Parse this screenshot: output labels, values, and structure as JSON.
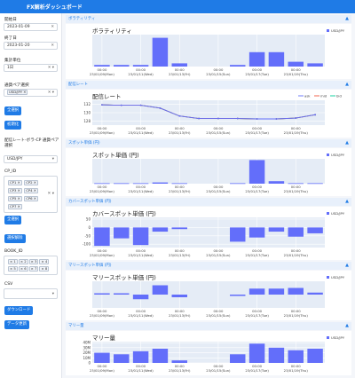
{
  "app": {
    "title": "FX解析ダッシュボード"
  },
  "sidebar": {
    "start_label": "開始日",
    "start_value": "2023-01-09",
    "end_label": "終了日",
    "end_value": "2023-01-20",
    "agg_label": "集計単位",
    "agg_value": "1日",
    "pair_label": "通貨ペア選択",
    "pair_tag": "USD/JPY",
    "select_all": "全選択",
    "reset": "初期化",
    "cp_pair_label": "配信レート-ボラ-CP 通貨ペア選択",
    "cp_pair_value": "USD/JPY",
    "cp_id_label": "CP_ID",
    "cp_tags": [
      "CP1",
      "CP2",
      "CP3",
      "CP4",
      "CP5",
      "CP6",
      "CP7"
    ],
    "select_all2": "全選択",
    "deselect": "選択解除",
    "book_label": "BOOK_ID",
    "book_tags": [
      "1",
      "2",
      "3",
      "4",
      "5",
      "6",
      "7",
      "8"
    ],
    "csv_label": "CSV",
    "download": "ダウンロード",
    "update": "データ更新"
  },
  "x_ticks": [
    [
      "00:00",
      "23/01/09(Mon)"
    ],
    [
      "00:00",
      "23/01/11(Wed)"
    ],
    [
      "00:00",
      "23/01/13(Fri)"
    ],
    [
      "00:00",
      "23/01/15(Sun)"
    ],
    [
      "00:00",
      "23/01/17(Tue)"
    ],
    [
      "00:00",
      "23/01/19(Thu)"
    ]
  ],
  "panels": [
    {
      "head": "ボラティリティ",
      "title": "ボラティリティ",
      "legend": [
        "USD/JPY"
      ]
    },
    {
      "head": "配信レート",
      "title": "配信レート",
      "legend": [
        "ask",
        "mid",
        "bid"
      ]
    },
    {
      "head": "スポット単価 (円)",
      "title": "スポット単価 (円)",
      "legend": [
        "USD/JPY"
      ]
    },
    {
      "head": "カバースポット単価 (円)",
      "title": "カバースポット単価 (円)",
      "legend": [
        "USD/JPY"
      ]
    },
    {
      "head": "マリースポット単価 (円)",
      "title": "マリースポット単価 (円)",
      "legend": [
        "USD/JPY"
      ]
    },
    {
      "head": "マリー量",
      "title": "マリー量",
      "legend": [
        "USD/JPY"
      ]
    }
  ],
  "chart_data": [
    {
      "type": "bar",
      "title": "ボラティリティ",
      "x": [
        "2023-01-09",
        "2023-01-10",
        "2023-01-11",
        "2023-01-12",
        "2023-01-13",
        "2023-01-14",
        "2023-01-15",
        "2023-01-16",
        "2023-01-17",
        "2023-01-18",
        "2023-01-19",
        "2023-01-20"
      ],
      "values": [
        0.05,
        0.05,
        0.05,
        0.9,
        0.1,
        0,
        0,
        0.05,
        0.45,
        0.45,
        0.15,
        0.1
      ],
      "ylim": [
        0,
        1
      ],
      "yticks": [],
      "series": [
        {
          "name": "USD/JPY"
        }
      ],
      "color": "#636efa"
    },
    {
      "type": "line",
      "title": "配信レート",
      "x": [
        "2023-01-09",
        "2023-01-10",
        "2023-01-11",
        "2023-01-12",
        "2023-01-13",
        "2023-01-14",
        "2023-01-15",
        "2023-01-16",
        "2023-01-17",
        "2023-01-18",
        "2023-01-19",
        "2023-01-20"
      ],
      "series": [
        {
          "name": "ask",
          "values": [
            131.9,
            131.8,
            131.8,
            131.1,
            129.2,
            128.6,
            128.6,
            128.6,
            128.5,
            128.5,
            128.7,
            129.5
          ],
          "color": "#636efa"
        },
        {
          "name": "mid",
          "values": [
            131.9,
            131.8,
            131.8,
            131.1,
            129.2,
            128.6,
            128.6,
            128.6,
            128.5,
            128.5,
            128.7,
            129.5
          ],
          "color": "#ef553b"
        },
        {
          "name": "bid",
          "values": [
            131.9,
            131.8,
            131.8,
            131.1,
            129.2,
            128.6,
            128.6,
            128.6,
            128.5,
            128.5,
            128.7,
            129.5
          ],
          "color": "#00cc96"
        }
      ],
      "ylim": [
        127,
        133
      ],
      "yticks": [
        128,
        130,
        132
      ]
    },
    {
      "type": "bar",
      "title": "スポット単価 (円)",
      "x": [
        "2023-01-09",
        "2023-01-10",
        "2023-01-11",
        "2023-01-12",
        "2023-01-13",
        "2023-01-14",
        "2023-01-15",
        "2023-01-16",
        "2023-01-17",
        "2023-01-18",
        "2023-01-19",
        "2023-01-20"
      ],
      "values": [
        0.02,
        0.02,
        0.02,
        0.05,
        0.02,
        0,
        0,
        0.02,
        0.95,
        0.1,
        0.02,
        0.02
      ],
      "ylim": [
        0,
        1
      ],
      "yticks": [],
      "series": [
        {
          "name": "USD/JPY"
        }
      ],
      "color": "#636efa"
    },
    {
      "type": "bar",
      "title": "カバースポット単価 (円)",
      "x": [
        "2023-01-09",
        "2023-01-10",
        "2023-01-11",
        "2023-01-12",
        "2023-01-13",
        "2023-01-14",
        "2023-01-15",
        "2023-01-16",
        "2023-01-17",
        "2023-01-18",
        "2023-01-19",
        "2023-01-20"
      ],
      "values": [
        -110,
        -65,
        -105,
        -25,
        -10,
        0,
        0,
        -85,
        -60,
        -25,
        -55,
        -35
      ],
      "ylim": [
        -120,
        60
      ],
      "yticks": [
        50,
        0,
        -50,
        -100
      ],
      "series": [
        {
          "name": "USD/JPY"
        }
      ],
      "color": "#636efa"
    },
    {
      "type": "bar",
      "title": "マリースポット単価 (円)",
      "x": [
        "2023-01-09",
        "2023-01-10",
        "2023-01-11",
        "2023-01-12",
        "2023-01-13",
        "2023-01-14",
        "2023-01-15",
        "2023-01-16",
        "2023-01-17",
        "2023-01-18",
        "2023-01-19",
        "2023-01-20"
      ],
      "values": [
        0.1,
        0.1,
        -0.35,
        0.7,
        -0.2,
        0,
        0,
        -0.1,
        0.45,
        0.45,
        0.5,
        0.15
      ],
      "ylim": [
        -1,
        1
      ],
      "yticks": [],
      "series": [
        {
          "name": "USD/JPY"
        }
      ],
      "color": "#636efa"
    },
    {
      "type": "bar",
      "title": "マリー量",
      "x": [
        "2023-01-09",
        "2023-01-10",
        "2023-01-11",
        "2023-01-12",
        "2023-01-13",
        "2023-01-14",
        "2023-01-15",
        "2023-01-16",
        "2023-01-17",
        "2023-01-18",
        "2023-01-19",
        "2023-01-20"
      ],
      "values": [
        20,
        17,
        23,
        28,
        5,
        0,
        0,
        17,
        38,
        30,
        25,
        28
      ],
      "ylim": [
        0,
        42
      ],
      "yticks": [
        40,
        30,
        20,
        10,
        0
      ],
      "ytick_labels": [
        "40M",
        "30M",
        "20M",
        "10M",
        "0"
      ],
      "series": [
        {
          "name": "USD/JPY"
        }
      ],
      "color": "#636efa"
    }
  ]
}
